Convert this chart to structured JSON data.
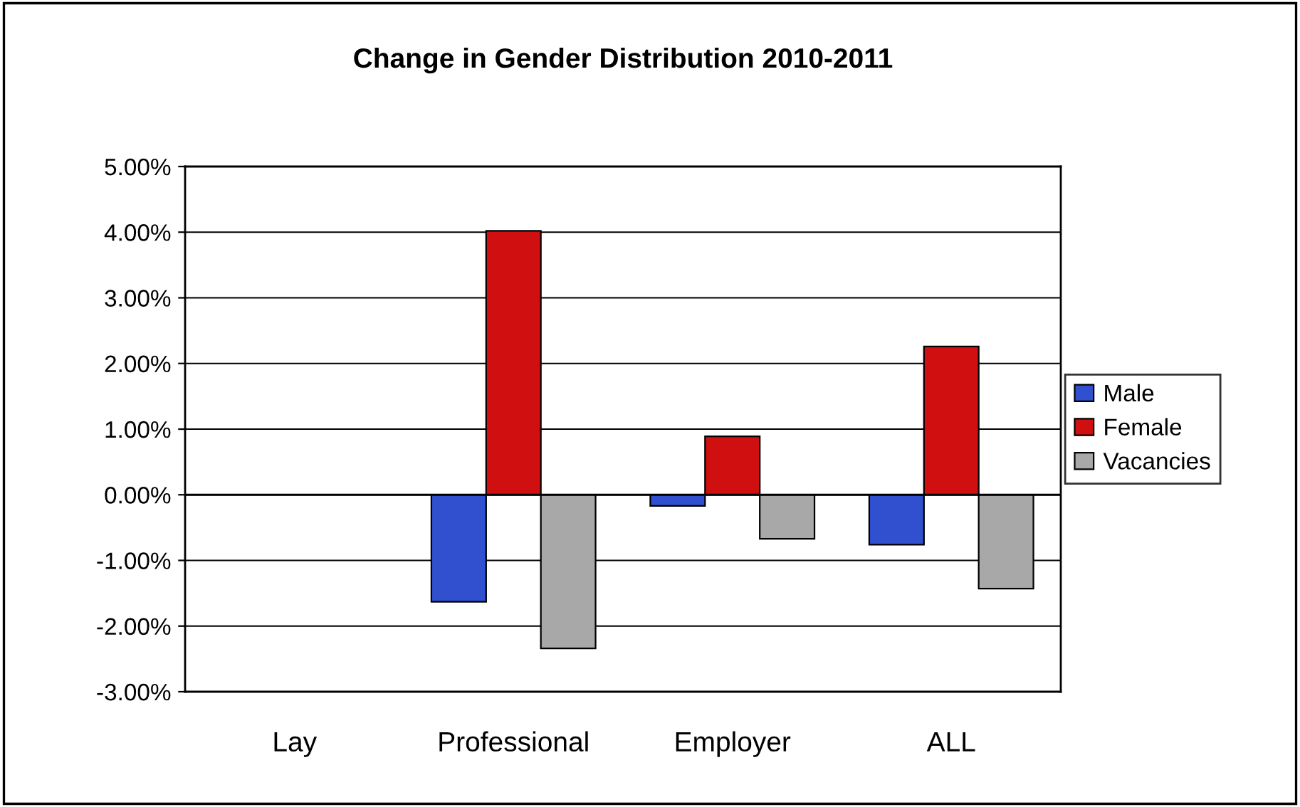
{
  "chart_data": {
    "type": "bar",
    "title": "Change in Gender Distribution 2010-2011",
    "categories": [
      "Lay",
      "Professional",
      "Employer",
      "ALL"
    ],
    "series": [
      {
        "name": "Male",
        "color": "#3050d0",
        "values": [
          null,
          -1.63,
          -0.17,
          -0.76
        ]
      },
      {
        "name": "Female",
        "color": "#d01010",
        "values": [
          null,
          4.02,
          0.89,
          2.26
        ]
      },
      {
        "name": "Vacancies",
        "color": "#a8a8a8",
        "values": [
          null,
          -2.34,
          -0.67,
          -1.43
        ]
      }
    ],
    "ylim": [
      -3,
      5
    ],
    "yticks": [
      {
        "value": -3,
        "label": "-3.00%"
      },
      {
        "value": -2,
        "label": "-2.00%"
      },
      {
        "value": -1,
        "label": "-1.00%"
      },
      {
        "value": 0,
        "label": "0.00%"
      },
      {
        "value": 1,
        "label": "1.00%"
      },
      {
        "value": 2,
        "label": "2.00%"
      },
      {
        "value": 3,
        "label": "3.00%"
      },
      {
        "value": 4,
        "label": "4.00%"
      },
      {
        "value": 5,
        "label": "5.00%"
      }
    ],
    "grid": "y",
    "legend": "right"
  }
}
